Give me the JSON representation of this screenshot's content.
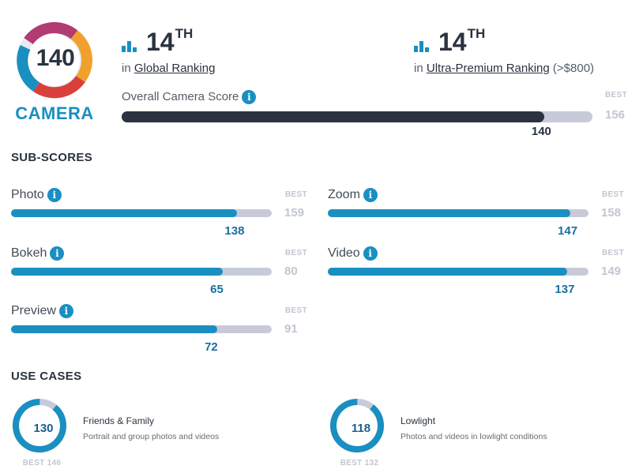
{
  "logo": {
    "score": "140",
    "label": "CAMERA"
  },
  "rankings": {
    "global": {
      "rank": "14",
      "suffix": "TH",
      "prefix": "in",
      "link": "Global Ranking",
      "extra": ""
    },
    "ultra": {
      "rank": "14",
      "suffix": "TH",
      "prefix": "in",
      "link": "Ultra-Premium Ranking",
      "extra": "(>$800)"
    }
  },
  "overall": {
    "label": "Overall Camera Score",
    "info": "i",
    "score": 140,
    "best": 156,
    "best_label": "BEST"
  },
  "subscores": {
    "title": "SUB-SCORES",
    "items": [
      {
        "label": "Photo",
        "score": 138,
        "best": 159,
        "best_label": "BEST"
      },
      {
        "label": "Zoom",
        "score": 147,
        "best": 158,
        "best_label": "BEST"
      },
      {
        "label": "Bokeh",
        "score": 65,
        "best": 80,
        "best_label": "BEST"
      },
      {
        "label": "Video",
        "score": 137,
        "best": 149,
        "best_label": "BEST"
      },
      {
        "label": "Preview",
        "score": 72,
        "best": 91,
        "best_label": "BEST"
      }
    ]
  },
  "usecases": {
    "title": "USE CASES",
    "items": [
      {
        "score": 130,
        "best": 146,
        "best_text": "BEST 146",
        "title": "Friends & Family",
        "desc": "Portrait and group photos and videos"
      },
      {
        "score": 118,
        "best": 132,
        "best_text": "BEST 132",
        "title": "Lowlight",
        "desc": "Photos and videos in lowlight conditions"
      }
    ]
  },
  "colors": {
    "accent": "#1a8fc1",
    "dark": "#2b3340",
    "track": "#c7cbd9",
    "muted": "#c2c6d0"
  }
}
